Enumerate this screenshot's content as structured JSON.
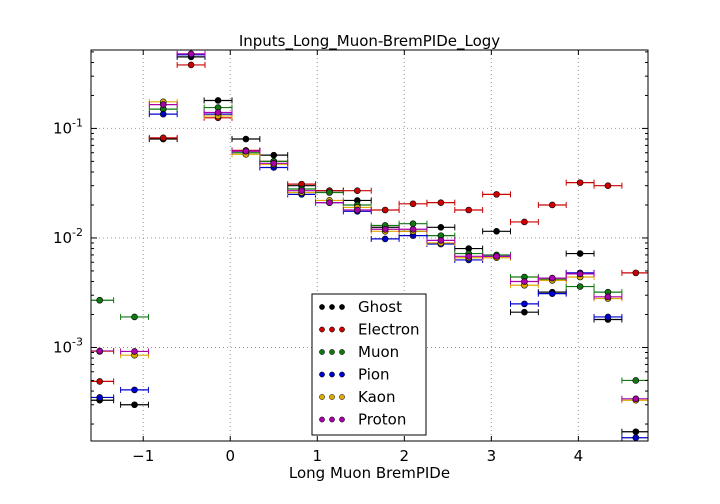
{
  "chart_data": {
    "type": "scatter",
    "title": "Inputs_Long_Muon-BremPIDe_Logy",
    "xlabel": "Long Muon BremPIDe",
    "ylabel": "",
    "xlim": [
      -1.6,
      4.8
    ],
    "ylim": [
      0.00014,
      0.52
    ],
    "log_y": true,
    "grid": true,
    "legend_position": "bottom-center",
    "x_ticks": [
      {
        "v": -1,
        "label": "−1"
      },
      {
        "v": 0,
        "label": "0"
      },
      {
        "v": 1,
        "label": "1"
      },
      {
        "v": 2,
        "label": "2"
      },
      {
        "v": 3,
        "label": "3"
      },
      {
        "v": 4,
        "label": "4"
      }
    ],
    "y_ticks": [
      {
        "v": 0.001,
        "base": "10",
        "exp": "-3"
      },
      {
        "v": 0.01,
        "base": "10",
        "exp": "-2"
      },
      {
        "v": 0.1,
        "base": "10",
        "exp": "-1"
      }
    ],
    "bins": [
      -1.5,
      -1.1,
      -0.77,
      -0.45,
      -0.14,
      0.18,
      0.5,
      0.82,
      1.14,
      1.46,
      1.78,
      2.1,
      2.42,
      2.74,
      3.06,
      3.38,
      3.7,
      4.02,
      4.34,
      4.66
    ],
    "bin_half_width": 0.16,
    "series": [
      {
        "name": "Ghost",
        "color": "#000000",
        "values": [
          0.00033,
          0.0003,
          0.08,
          0.45,
          0.18,
          0.08,
          0.057,
          0.03,
          0.027,
          0.022,
          0.0125,
          0.0115,
          0.0125,
          0.008,
          0.0115,
          0.0021,
          0.0032,
          0.0072,
          0.0018,
          0.00017
        ]
      },
      {
        "name": "Electron",
        "color": "#cc0000",
        "values": [
          0.00049,
          null,
          0.082,
          0.38,
          0.125,
          0.063,
          0.05,
          0.031,
          0.027,
          0.027,
          0.018,
          0.0205,
          0.021,
          0.018,
          0.025,
          0.014,
          0.02,
          0.032,
          0.03,
          0.0048
        ]
      },
      {
        "name": "Muon",
        "color": "#117711",
        "values": [
          0.0027,
          0.0019,
          0.15,
          null,
          0.155,
          0.06,
          0.05,
          0.028,
          0.026,
          0.02,
          0.013,
          0.0135,
          0.0105,
          0.0072,
          0.007,
          0.0044,
          0.0042,
          0.0036,
          0.0032,
          0.0005
        ]
      },
      {
        "name": "Pion",
        "color": "#0000cc",
        "values": [
          0.00035,
          0.00041,
          0.135,
          0.47,
          0.135,
          0.062,
          0.044,
          0.025,
          0.021,
          0.0175,
          0.0098,
          0.0105,
          0.0088,
          0.0063,
          0.0068,
          0.0025,
          0.0031,
          0.0048,
          0.0019,
          0.00015
        ]
      },
      {
        "name": "Kaon",
        "color": "#ddaa00",
        "values": [
          0.00092,
          0.00085,
          0.175,
          null,
          0.13,
          0.058,
          0.047,
          0.026,
          0.022,
          0.019,
          0.0115,
          0.0115,
          0.009,
          0.0066,
          0.0066,
          0.0037,
          0.0041,
          0.0044,
          0.0028,
          0.00033
        ]
      },
      {
        "name": "Proton",
        "color": "#aa00aa",
        "values": [
          0.00093,
          0.00092,
          0.165,
          0.48,
          0.14,
          0.062,
          0.048,
          0.027,
          0.021,
          0.018,
          0.012,
          0.012,
          0.0095,
          0.0068,
          0.0068,
          0.004,
          0.0043,
          0.0047,
          0.0029,
          0.00034
        ]
      }
    ]
  }
}
